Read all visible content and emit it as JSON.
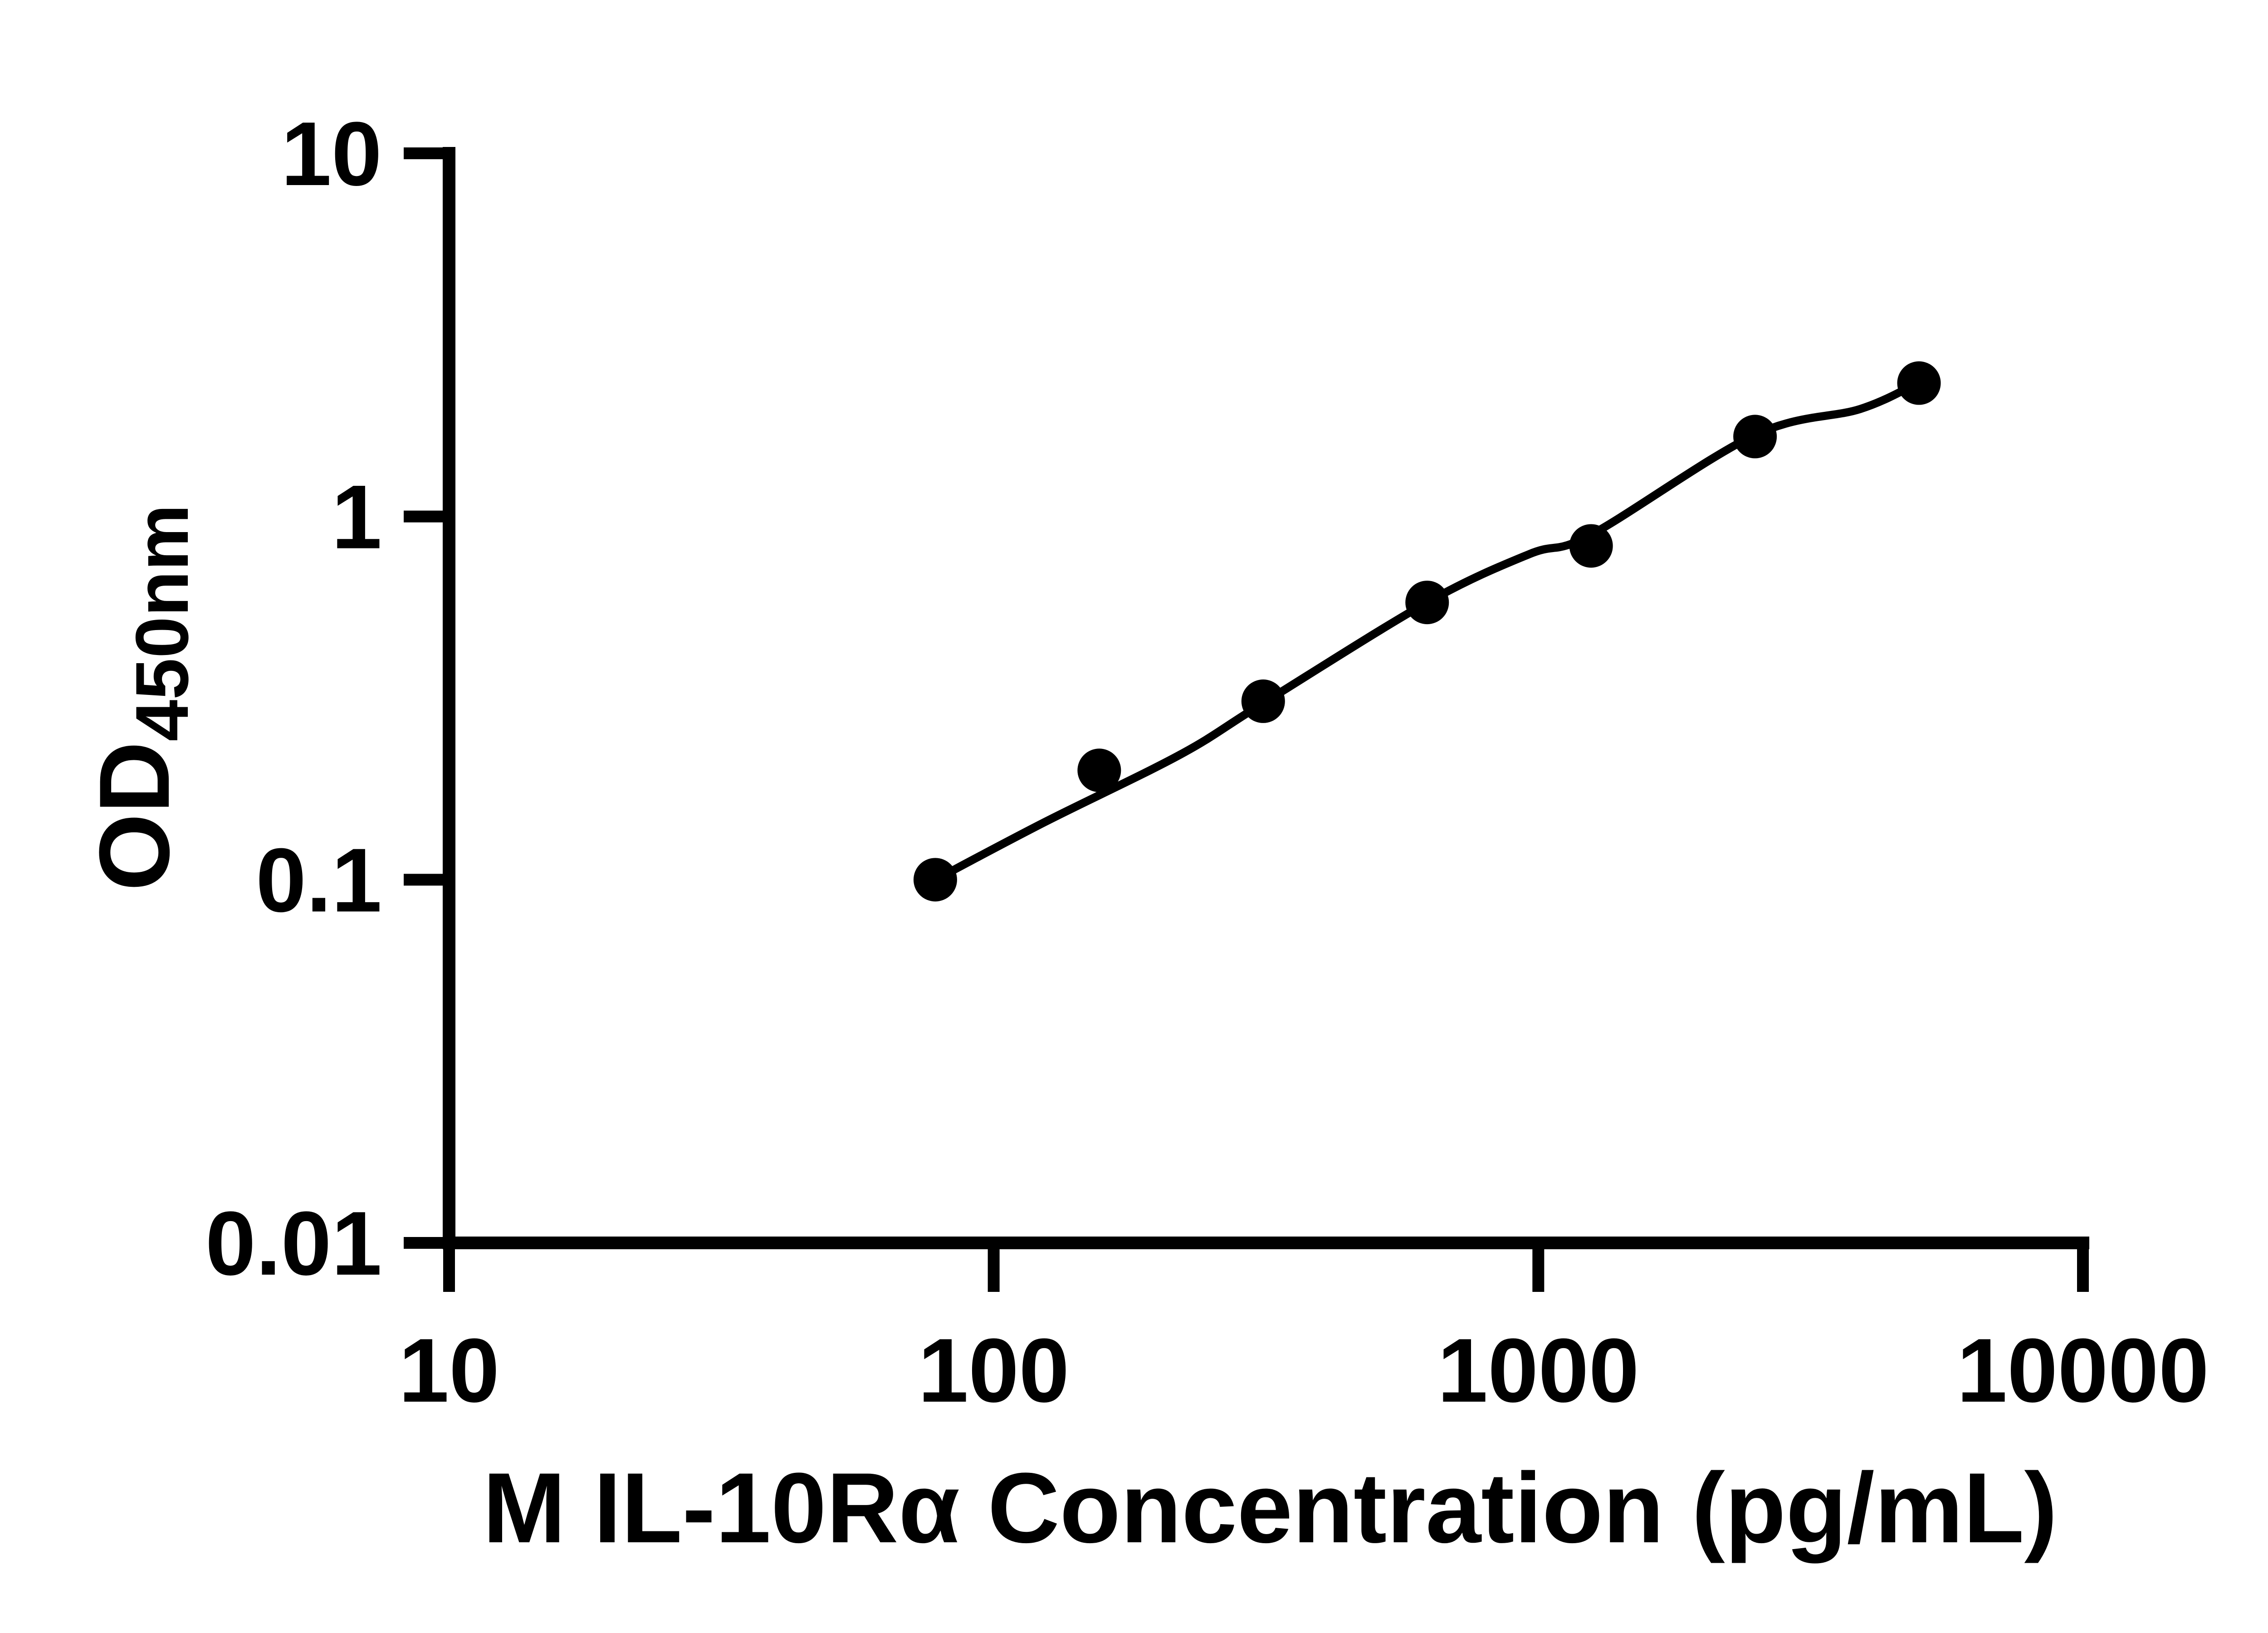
{
  "chart_data": {
    "type": "scatter",
    "title": "",
    "xlabel": "M IL-10Rα Concentration (pg/mL)",
    "ylabel": "OD450nm",
    "ylabel_main": "OD",
    "ylabel_sub": "450nm",
    "x_scale": "log10",
    "y_scale": "log10",
    "xlim": [
      10,
      10000
    ],
    "ylim": [
      0.01,
      10
    ],
    "grid": false,
    "legend_position": "none",
    "x_ticks": [
      {
        "value": 10,
        "label": "10"
      },
      {
        "value": 100,
        "label": "100"
      },
      {
        "value": 1000,
        "label": "1000"
      },
      {
        "value": 10000,
        "label": "10000"
      }
    ],
    "y_ticks": [
      {
        "value": 10,
        "label": "10"
      },
      {
        "value": 1,
        "label": "1"
      },
      {
        "value": 0.1,
        "label": "0.1"
      },
      {
        "value": 0.01,
        "label": "0.01"
      }
    ],
    "series": [
      {
        "marker": "filled-circle",
        "color": "#000000",
        "points": [
          {
            "concentration_pg_ml": 78.125,
            "od450": 0.1
          },
          {
            "concentration_pg_ml": 156.25,
            "od450": 0.2
          },
          {
            "concentration_pg_ml": 312.5,
            "od450": 0.31
          },
          {
            "concentration_pg_ml": 625,
            "od450": 0.58
          },
          {
            "concentration_pg_ml": 1250,
            "od450": 0.83
          },
          {
            "concentration_pg_ml": 2500,
            "od450": 1.66
          },
          {
            "concentration_pg_ml": 5000,
            "od450": 2.33
          }
        ]
      }
    ],
    "fit_curve": {
      "style": "solid",
      "color": "#000000",
      "points": [
        {
          "concentration_pg_ml": 78.125,
          "od450": 0.1
        },
        {
          "concentration_pg_ml": 124,
          "od450": 0.144
        },
        {
          "concentration_pg_ml": 220,
          "od450": 0.221
        },
        {
          "concentration_pg_ml": 311,
          "od450": 0.305
        },
        {
          "concentration_pg_ml": 625,
          "od450": 0.58
        },
        {
          "concentration_pg_ml": 963,
          "od450": 0.788
        },
        {
          "concentration_pg_ml": 1250,
          "od450": 0.891
        },
        {
          "concentration_pg_ml": 2492,
          "od450": 1.674
        },
        {
          "concentration_pg_ml": 3900,
          "od450": 1.977
        },
        {
          "concentration_pg_ml": 5000,
          "od450": 2.342
        }
      ]
    },
    "colors": {
      "foreground": "#000000",
      "background": "#ffffff"
    }
  }
}
